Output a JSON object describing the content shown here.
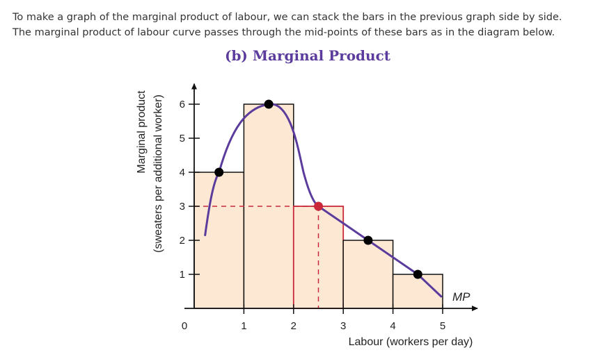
{
  "intro": {
    "line1": "To make a graph of the marginal product of labour, we can stack the bars in the previous graph side by side.",
    "line2": "The marginal product of labour curve passes through the mid-points of these bars as in the diagram below."
  },
  "chart_data": {
    "type": "bar",
    "title": "(b) Marginal Product",
    "xlabel": "Labour (workers per day)",
    "ylabel_line1": "Marginal product",
    "ylabel_line2": "(sweaters per additional worker)",
    "xlim": [
      0,
      5
    ],
    "ylim": [
      0,
      6
    ],
    "x_ticks": [
      "0",
      "1",
      "2",
      "3",
      "4",
      "5"
    ],
    "y_ticks": [
      "1",
      "2",
      "3",
      "4",
      "5",
      "6"
    ],
    "bars": [
      {
        "x0": 0,
        "x1": 1,
        "value": 4
      },
      {
        "x0": 1,
        "x1": 2,
        "value": 6
      },
      {
        "x0": 2,
        "x1": 3,
        "value": 3,
        "highlighted": true
      },
      {
        "x0": 3,
        "x1": 4,
        "value": 2
      },
      {
        "x0": 4,
        "x1": 5,
        "value": 1
      }
    ],
    "midpoints": [
      {
        "x": 0.5,
        "y": 4
      },
      {
        "x": 1.5,
        "y": 6
      },
      {
        "x": 2.5,
        "y": 3,
        "highlighted": true
      },
      {
        "x": 3.5,
        "y": 2
      },
      {
        "x": 4.5,
        "y": 1
      }
    ],
    "curve_label": "MP",
    "colors": {
      "bar_fill": "#fde8d4",
      "bar_stroke": "#111111",
      "highlight": "#c8283a",
      "curve": "#5b3c9c",
      "point": "#000000"
    }
  }
}
